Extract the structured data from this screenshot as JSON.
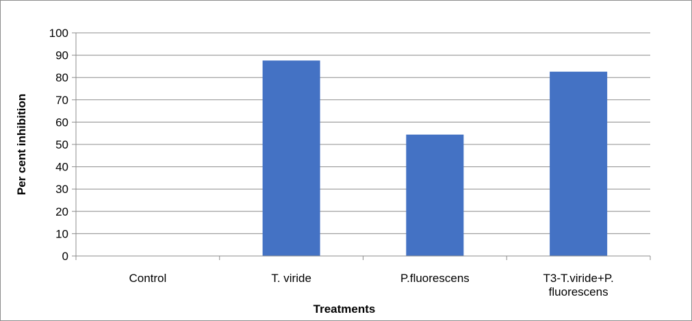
{
  "chart_data": {
    "type": "bar",
    "title": "",
    "xlabel": "Treatments",
    "ylabel": "Per cent inhibition",
    "categories": [
      "Control",
      "T. viride",
      "P.fluorescens",
      "T3-T.viride+P. fluorescens"
    ],
    "category_lines": [
      [
        "Control"
      ],
      [
        "T. viride"
      ],
      [
        "P.fluorescens"
      ],
      [
        "T3-T.viride+P.",
        "fluorescens"
      ]
    ],
    "values": [
      0,
      87.6,
      54.4,
      82.6
    ],
    "ylim": [
      0,
      100
    ],
    "yticks": [
      "0",
      "10",
      "20",
      "30",
      "40",
      "50",
      "60",
      "70",
      "80",
      "90",
      "100"
    ],
    "grid": true,
    "legend": "none",
    "bar_color": "#4472C4",
    "grid_color": "#8c8c8c"
  }
}
